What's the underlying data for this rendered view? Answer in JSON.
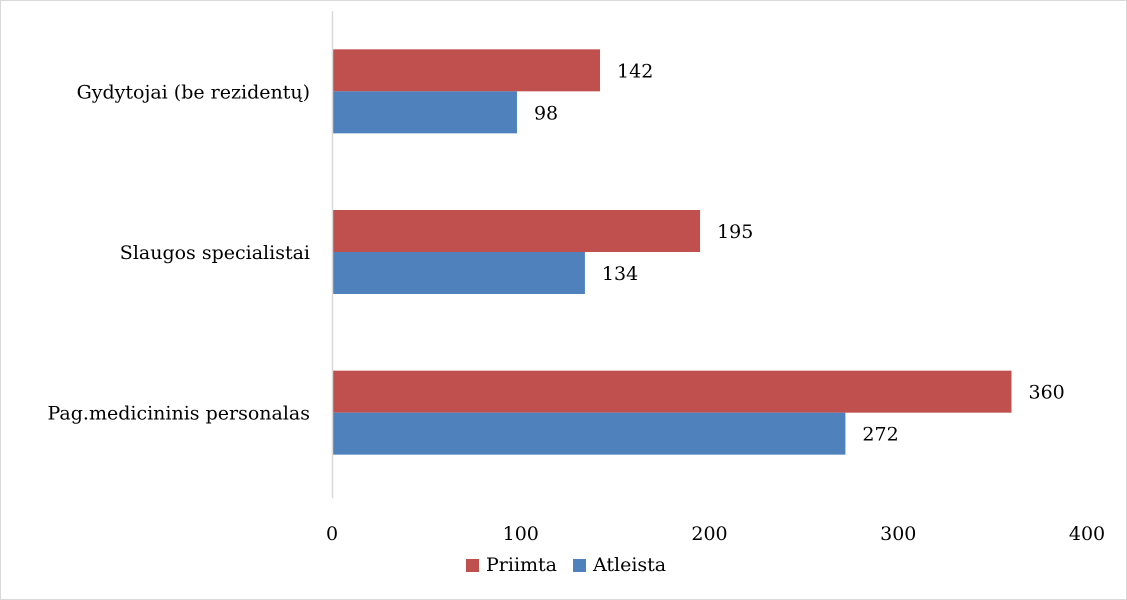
{
  "chart_data": {
    "type": "bar",
    "orientation": "horizontal",
    "categories": [
      "Gydytojai (be rezidentų)",
      "Slaugos specialistai",
      "Pag.medicininis personalas"
    ],
    "series": [
      {
        "name": "Priimta",
        "values": [
          142,
          195,
          360
        ],
        "color": "#c0504d"
      },
      {
        "name": "Atleista",
        "values": [
          98,
          134,
          272
        ],
        "color": "#4f81bd"
      }
    ],
    "xlim": [
      0,
      400
    ],
    "xticks": [
      "0",
      "100",
      "200",
      "300",
      "400"
    ],
    "grid": false,
    "legend": "bottom",
    "axis_color": "#d9d9d9"
  }
}
